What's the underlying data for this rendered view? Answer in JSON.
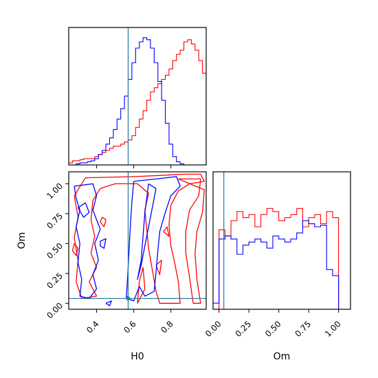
{
  "chart_data": [
    {
      "type": "histogram",
      "panel": "H0 marginal",
      "xlim": [
        0.25,
        0.99
      ],
      "truth_line": 0.57,
      "colors": {
        "red": "#ff0000",
        "blue": "#0000ff",
        "truth": "#2e7fa8"
      },
      "bin_edges": [
        0.25,
        0.27,
        0.29,
        0.31,
        0.33,
        0.35,
        0.37,
        0.39,
        0.41,
        0.43,
        0.45,
        0.47,
        0.49,
        0.51,
        0.53,
        0.55,
        0.57,
        0.59,
        0.61,
        0.63,
        0.65,
        0.67,
        0.69,
        0.71,
        0.73,
        0.75,
        0.77,
        0.79,
        0.81,
        0.83,
        0.85,
        0.87,
        0.89,
        0.91,
        0.93,
        0.95,
        0.97,
        0.99
      ],
      "series": [
        {
          "color": "red",
          "values": [
            2,
            4,
            4,
            5,
            6,
            6,
            6,
            8,
            10,
            12,
            14,
            16,
            18,
            18,
            20,
            22,
            24,
            28,
            36,
            44,
            52,
            62,
            70,
            74,
            78,
            82,
            86,
            92,
            100,
            106,
            110,
            118,
            120,
            116,
            110,
            100,
            88
          ]
        },
        {
          "color": "blue",
          "values": [
            0,
            0,
            1,
            2,
            2,
            3,
            4,
            6,
            10,
            14,
            20,
            26,
            34,
            44,
            54,
            66,
            82,
            98,
            112,
            118,
            122,
            120,
            112,
            98,
            80,
            62,
            40,
            20,
            8,
            3,
            1,
            0,
            0,
            0,
            0,
            0,
            0
          ]
        }
      ]
    },
    {
      "type": "contour",
      "panel": "H0 vs Om joint",
      "xlabel": "H0",
      "ylabel": "Om",
      "xlim": [
        0.25,
        0.99
      ],
      "ylim": [
        -0.05,
        1.1
      ],
      "x_ticks": [
        "0.4",
        "0.6",
        "0.8"
      ],
      "y_ticks": [
        "0.00",
        "0.25",
        "0.50",
        "0.75",
        "1.00"
      ],
      "truth_lines": {
        "x": 0.57,
        "y": 0.04
      },
      "series": [
        {
          "color": "red",
          "contours": [
            [
              [
                0.34,
                1.05
              ],
              [
                0.6,
                1.06
              ],
              [
                0.75,
                1.07
              ],
              [
                0.87,
                1.08
              ],
              [
                0.96,
                1.08
              ],
              [
                0.98,
                1.02
              ],
              [
                0.9,
                1.0
              ],
              [
                0.84,
                0.94
              ],
              [
                0.8,
                0.82
              ],
              [
                0.79,
                0.66
              ],
              [
                0.8,
                0.48
              ],
              [
                0.82,
                0.34
              ],
              [
                0.84,
                0.18
              ],
              [
                0.85,
                0.0
              ],
              [
                0.74,
                0.0
              ],
              [
                0.72,
                0.1
              ],
              [
                0.7,
                0.28
              ],
              [
                0.68,
                0.46
              ],
              [
                0.67,
                0.62
              ],
              [
                0.66,
                0.78
              ],
              [
                0.68,
                0.92
              ],
              [
                0.62,
                1.0
              ],
              [
                0.5,
                1.0
              ],
              [
                0.42,
                0.96
              ],
              [
                0.38,
                0.86
              ],
              [
                0.37,
                0.7
              ],
              [
                0.39,
                0.56
              ],
              [
                0.37,
                0.42
              ],
              [
                0.4,
                0.3
              ],
              [
                0.36,
                0.18
              ],
              [
                0.4,
                0.06
              ],
              [
                0.32,
                0.04
              ],
              [
                0.29,
                0.18
              ],
              [
                0.3,
                0.36
              ],
              [
                0.28,
                0.55
              ],
              [
                0.3,
                0.72
              ],
              [
                0.28,
                0.9
              ],
              [
                0.34,
                1.05
              ]
            ],
            [
              [
                0.84,
                1.04
              ],
              [
                0.96,
                1.04
              ],
              [
                0.95,
                0.9
              ],
              [
                0.9,
                0.78
              ],
              [
                0.88,
                0.6
              ],
              [
                0.88,
                0.42
              ],
              [
                0.9,
                0.22
              ],
              [
                0.92,
                0.0
              ],
              [
                0.96,
                0.0
              ],
              [
                0.94,
                0.2
              ],
              [
                0.93,
                0.42
              ],
              [
                0.94,
                0.6
              ],
              [
                0.97,
                0.76
              ],
              [
                0.98,
                0.95
              ],
              [
                0.84,
                1.04
              ]
            ],
            [
              [
                0.62,
                0.0
              ],
              [
                0.63,
                0.18
              ],
              [
                0.65,
                0.3
              ],
              [
                0.66,
                0.12
              ],
              [
                0.62,
                0.0
              ]
            ],
            [
              [
                0.28,
                0.5
              ],
              [
                0.3,
                0.46
              ],
              [
                0.29,
                0.4
              ],
              [
                0.27,
                0.44
              ],
              [
                0.28,
                0.5
              ]
            ],
            [
              [
                0.43,
                0.72
              ],
              [
                0.45,
                0.7
              ],
              [
                0.44,
                0.64
              ],
              [
                0.42,
                0.68
              ],
              [
                0.43,
                0.72
              ]
            ],
            [
              [
                0.72,
                0.32
              ],
              [
                0.75,
                0.36
              ],
              [
                0.74,
                0.24
              ],
              [
                0.72,
                0.32
              ]
            ],
            [
              [
                0.76,
                0.6
              ],
              [
                0.78,
                0.64
              ],
              [
                0.79,
                0.56
              ],
              [
                0.76,
                0.6
              ]
            ]
          ]
        },
        {
          "color": "blue",
          "contours": [
            [
              [
                0.28,
                0.98
              ],
              [
                0.38,
                1.0
              ],
              [
                0.4,
                0.9
              ],
              [
                0.38,
                0.78
              ],
              [
                0.42,
                0.62
              ],
              [
                0.39,
                0.5
              ],
              [
                0.41,
                0.36
              ],
              [
                0.38,
                0.24
              ],
              [
                0.4,
                0.12
              ],
              [
                0.36,
                0.04
              ],
              [
                0.31,
                0.06
              ],
              [
                0.32,
                0.2
              ],
              [
                0.3,
                0.34
              ],
              [
                0.31,
                0.5
              ],
              [
                0.29,
                0.64
              ],
              [
                0.31,
                0.78
              ],
              [
                0.29,
                0.88
              ],
              [
                0.28,
                0.98
              ]
            ],
            [
              [
                0.6,
                1.02
              ],
              [
                0.72,
                1.04
              ],
              [
                0.83,
                1.06
              ],
              [
                0.85,
                0.98
              ],
              [
                0.8,
                0.9
              ],
              [
                0.77,
                0.76
              ],
              [
                0.74,
                0.6
              ],
              [
                0.73,
                0.44
              ],
              [
                0.72,
                0.26
              ],
              [
                0.71,
                0.1
              ],
              [
                0.66,
                0.06
              ],
              [
                0.63,
                0.14
              ],
              [
                0.6,
                0.02
              ],
              [
                0.56,
                0.04
              ],
              [
                0.57,
                0.3
              ],
              [
                0.58,
                0.6
              ],
              [
                0.59,
                0.85
              ],
              [
                0.6,
                1.02
              ]
            ],
            [
              [
                0.68,
                1.0
              ],
              [
                0.72,
                0.96
              ],
              [
                0.7,
                0.8
              ],
              [
                0.68,
                0.64
              ],
              [
                0.66,
                0.48
              ],
              [
                0.64,
                0.32
              ],
              [
                0.62,
                0.2
              ],
              [
                0.64,
                0.36
              ],
              [
                0.65,
                0.56
              ],
              [
                0.66,
                0.76
              ],
              [
                0.68,
                1.0
              ]
            ],
            [
              [
                0.3,
                0.8
              ],
              [
                0.34,
                0.84
              ],
              [
                0.36,
                0.76
              ],
              [
                0.33,
                0.72
              ],
              [
                0.3,
                0.8
              ]
            ],
            [
              [
                0.42,
                0.52
              ],
              [
                0.45,
                0.54
              ],
              [
                0.44,
                0.46
              ],
              [
                0.42,
                0.48
              ],
              [
                0.42,
                0.52
              ]
            ],
            [
              [
                0.45,
                0.0
              ],
              [
                0.48,
                0.02
              ],
              [
                0.47,
                -0.02
              ],
              [
                0.45,
                0.0
              ]
            ],
            [
              [
                0.56,
                0.05
              ],
              [
                0.57,
                0.06
              ],
              [
                0.58,
                0.03
              ],
              [
                0.56,
                0.05
              ]
            ]
          ]
        }
      ]
    },
    {
      "type": "histogram",
      "panel": "Om marginal",
      "xlabel": "Om",
      "xlim": [
        -0.05,
        1.1
      ],
      "x_ticks": [
        "0.00",
        "0.25",
        "0.50",
        "0.75",
        "1.00"
      ],
      "truth_line": 0.04,
      "bin_edges": [
        -0.05,
        0.0,
        0.05,
        0.1,
        0.15,
        0.2,
        0.25,
        0.3,
        0.35,
        0.4,
        0.45,
        0.5,
        0.55,
        0.6,
        0.65,
        0.7,
        0.75,
        0.8,
        0.85,
        0.9,
        0.95,
        1.0,
        1.05
      ],
      "series": [
        {
          "color": "red",
          "values": [
            0,
            52,
            48,
            58,
            64,
            60,
            62,
            54,
            62,
            66,
            64,
            58,
            60,
            62,
            66,
            54,
            60,
            62,
            56,
            64,
            60,
            0
          ]
        },
        {
          "color": "blue",
          "values": [
            4,
            46,
            48,
            46,
            36,
            42,
            44,
            46,
            44,
            40,
            48,
            46,
            44,
            46,
            50,
            58,
            56,
            54,
            55,
            26,
            22,
            0
          ]
        }
      ]
    }
  ]
}
